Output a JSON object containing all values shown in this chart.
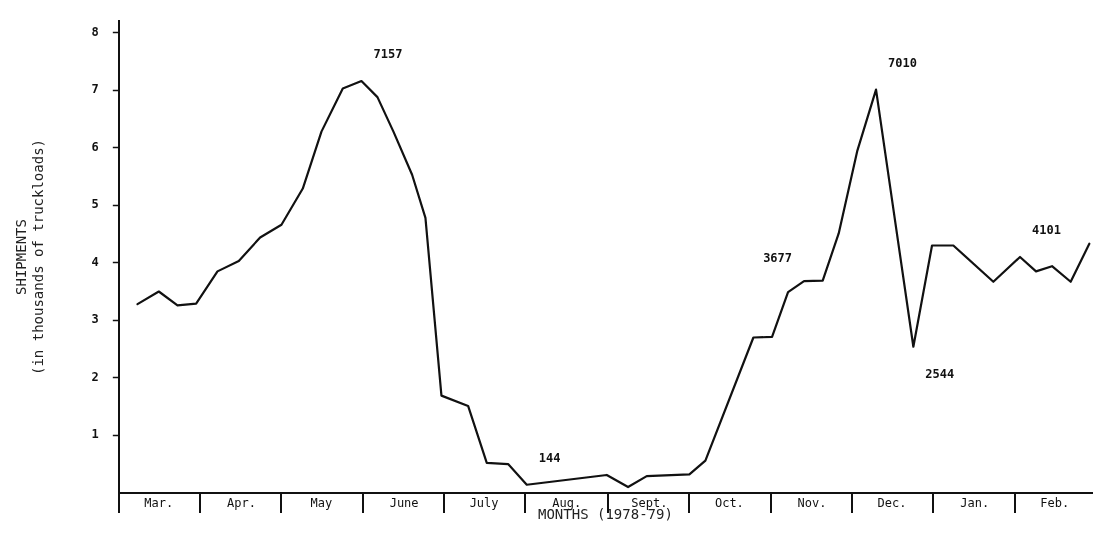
{
  "chart_data": {
    "type": "line",
    "xlabel": "MONTHS (1978-79)",
    "ylabel": "SHIPMENTS\n(in thousands of truckloads)",
    "x": [
      "1978-03-08",
      "1978-03-16",
      "1978-03-23",
      "1978-03-30",
      "1978-04-07",
      "1978-04-15",
      "1978-04-23",
      "1978-05-01",
      "1978-05-09",
      "1978-05-16",
      "1978-05-24",
      "1978-05-31",
      "1978-06-06",
      "1978-06-12",
      "1978-06-19",
      "1978-06-24",
      "1978-06-30",
      "1978-07-10",
      "1978-07-17",
      "1978-07-25",
      "1978-08-01",
      "1978-08-31",
      "1978-09-08",
      "1978-09-15",
      "1978-10-01",
      "1978-10-07",
      "1978-10-25",
      "1978-11-01",
      "1978-11-07",
      "1978-11-13",
      "1978-11-20",
      "1978-11-26",
      "1978-12-03",
      "1978-12-10",
      "1978-12-24",
      "1978-12-31",
      "1979-01-08",
      "1979-01-23",
      "1979-02-02",
      "1979-02-08",
      "1979-02-14",
      "1979-02-21",
      "1979-02-28"
    ],
    "series": [
      {
        "color": "#111111",
        "values": [
          3.28,
          3.5,
          3.26,
          3.29,
          3.85,
          4.03,
          4.44,
          4.66,
          5.29,
          6.28,
          7.03,
          7.16,
          6.88,
          6.28,
          5.53,
          4.78,
          1.69,
          1.51,
          0.52,
          0.5,
          0.14,
          0.31,
          0.1,
          0.29,
          0.32,
          0.56,
          2.7,
          2.71,
          3.49,
          3.68,
          3.69,
          4.51,
          5.95,
          7.01,
          2.54,
          4.3,
          4.3,
          3.67,
          4.1,
          3.85,
          3.94,
          3.67,
          4.33
        ]
      }
    ],
    "annotations": [
      {
        "text": "7157",
        "x": "1978-05-31",
        "y": 7.16
      },
      {
        "text": "144",
        "x": "1978-08-01",
        "y": 0.14
      },
      {
        "text": "3677",
        "x": "1978-11-13",
        "y": 3.68
      },
      {
        "text": "7010",
        "x": "1978-12-10",
        "y": 7.01
      },
      {
        "text": "2544",
        "x": "1978-12-24",
        "y": 2.54
      },
      {
        "text": "4101",
        "x": "1979-02-02",
        "y": 4.1
      }
    ],
    "xlim": [
      "1978-03-01",
      "1979-03-01"
    ],
    "xticks": [
      {
        "value": "1978-03-16",
        "label": "Mar."
      },
      {
        "value": "1978-04-16",
        "label": "Apr."
      },
      {
        "value": "1978-05-16",
        "label": "May"
      },
      {
        "value": "1978-06-16",
        "label": "June"
      },
      {
        "value": "1978-07-16",
        "label": "July"
      },
      {
        "value": "1978-08-16",
        "label": "Aug."
      },
      {
        "value": "1978-09-16",
        "label": "Sept."
      },
      {
        "value": "1978-10-16",
        "label": "Oct."
      },
      {
        "value": "1978-11-16",
        "label": "Nov."
      },
      {
        "value": "1978-12-16",
        "label": "Dec."
      },
      {
        "value": "1979-01-16",
        "label": "Jan."
      },
      {
        "value": "1979-02-15",
        "label": "Feb."
      }
    ],
    "ylim": [
      0,
      8.2
    ],
    "yticks": [
      1,
      2,
      3,
      4,
      5,
      6,
      7,
      8
    ],
    "grid": false,
    "legend": false,
    "marker": "none",
    "line_style": "solid"
  }
}
